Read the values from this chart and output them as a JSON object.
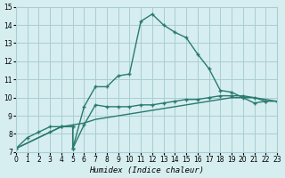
{
  "xlabel": "Humidex (Indice chaleur)",
  "bg_color": "#d6eef0",
  "grid_color": "#aaccd4",
  "line_color": "#2a7a6e",
  "xlim": [
    0,
    23
  ],
  "ylim": [
    7,
    15
  ],
  "xticks": [
    0,
    1,
    2,
    3,
    4,
    5,
    6,
    7,
    8,
    9,
    10,
    11,
    12,
    13,
    14,
    15,
    16,
    17,
    18,
    19,
    20,
    21,
    22,
    23
  ],
  "yticks": [
    7,
    8,
    9,
    10,
    11,
    12,
    13,
    14,
    15
  ],
  "curve1_x": [
    0,
    1,
    2,
    3,
    4,
    5,
    5,
    6,
    7,
    8,
    9,
    10,
    11,
    12,
    13,
    14,
    15,
    16,
    17,
    18,
    19,
    20,
    21,
    22
  ],
  "curve1_y": [
    7.2,
    7.8,
    8.1,
    8.4,
    8.4,
    8.4,
    7.2,
    9.5,
    10.6,
    10.6,
    11.2,
    11.3,
    14.2,
    14.6,
    14.0,
    13.6,
    13.3,
    12.4,
    11.6,
    10.4,
    10.3,
    10.0,
    9.7,
    9.8
  ],
  "curve2_x": [
    0,
    3,
    4,
    5,
    5,
    6,
    7,
    8,
    9,
    10,
    11,
    12,
    13,
    14,
    15,
    16,
    17,
    18,
    19,
    20,
    21,
    22,
    23
  ],
  "curve2_y": [
    7.2,
    8.1,
    8.4,
    8.4,
    7.2,
    8.5,
    9.6,
    9.5,
    9.5,
    9.5,
    9.6,
    9.6,
    9.7,
    9.8,
    9.9,
    9.9,
    10.0,
    10.1,
    10.1,
    10.1,
    10.0,
    9.8,
    9.8
  ],
  "curve3_x": [
    0,
    3,
    4,
    5,
    6,
    7,
    8,
    9,
    10,
    11,
    12,
    13,
    14,
    15,
    16,
    17,
    18,
    19,
    20,
    21,
    22,
    23
  ],
  "curve3_y": [
    7.2,
    8.1,
    8.4,
    8.5,
    8.6,
    8.8,
    8.9,
    9.0,
    9.1,
    9.2,
    9.3,
    9.4,
    9.5,
    9.6,
    9.7,
    9.8,
    9.9,
    10.0,
    10.0,
    10.0,
    9.9,
    9.8
  ]
}
